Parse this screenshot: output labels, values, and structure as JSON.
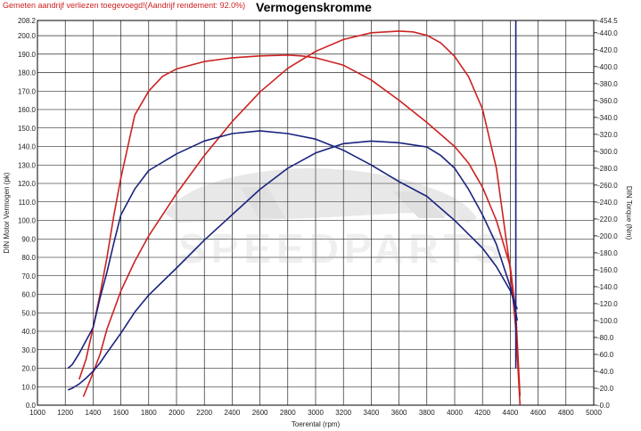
{
  "header": {
    "note": "Gemeten aandrijf verliezen toegevoegd!(Aandrijf rendement: 92.0%)",
    "title": "Vermogenskromme"
  },
  "chart_data": {
    "type": "line",
    "title": "Vermogenskromme",
    "xlabel": "Toerental (rpm)",
    "ylabel": "DIN Motor Vermogen (pk)",
    "y2label": "DIN Torque (Nm)",
    "xlim": [
      1000,
      5000
    ],
    "ylim": [
      0,
      208.2
    ],
    "y2lim": [
      0,
      454.5
    ],
    "xticks": [
      "1000",
      "1200",
      "1400",
      "1600",
      "1800",
      "2000",
      "2200",
      "2400",
      "2600",
      "2800",
      "3000",
      "3200",
      "3400",
      "3600",
      "3800",
      "4000",
      "4200",
      "4400",
      "4600",
      "4800",
      "5000"
    ],
    "yticks": [
      "0.0",
      "10.0",
      "20.0",
      "30.0",
      "40.0",
      "50.0",
      "60.0",
      "70.0",
      "80.0",
      "90.0",
      "100.0",
      "110.0",
      "120.0",
      "130.0",
      "140.0",
      "150.0",
      "160.0",
      "170.0",
      "180.0",
      "190.0",
      "200.0",
      "208.2"
    ],
    "y2ticks": [
      "-0.0",
      "-20.0",
      "-40.0",
      "-60.0",
      "-80.0",
      "-100.0",
      "-120.0",
      "-140.0",
      "-160.0",
      "-180.0",
      "-200.0",
      "-220.0",
      "-240.0",
      "-260.0",
      "-280.0",
      "-300.0",
      "-320.0",
      "-340.0",
      "-360.0",
      "-380.0",
      "-400.0",
      "-420.0",
      "-440.0",
      "-454.5"
    ],
    "grid": true,
    "colors": {
      "red": "#cc2222",
      "blue": "#1a237e",
      "frame": "#000000",
      "grid": "#000000"
    },
    "series": [
      {
        "color": "#cc2222",
        "axis": "left",
        "x": [
          1300,
          1350,
          1400,
          1450,
          1500,
          1550,
          1600,
          1650,
          1700,
          1800,
          1900,
          2000,
          2200,
          2400,
          2600,
          2800,
          2900,
          3000,
          3200,
          3400,
          3600,
          3800,
          4000,
          4100,
          4200,
          4300,
          4400,
          4440,
          4470
        ],
        "y": [
          14,
          25,
          42,
          60,
          80,
          103,
          123,
          140,
          157,
          170,
          178,
          182,
          186,
          188,
          189,
          189.5,
          189,
          188,
          184,
          176,
          165,
          153,
          140,
          131,
          118,
          100,
          75,
          50,
          5
        ]
      },
      {
        "color": "#cc2222",
        "axis": "right",
        "x": [
          1330,
          1380,
          1450,
          1500,
          1600,
          1700,
          1800,
          2000,
          2200,
          2400,
          2600,
          2800,
          3000,
          3200,
          3400,
          3600,
          3700,
          3800,
          3900,
          4000,
          4100,
          4200,
          4300,
          4350,
          4400,
          4440,
          4470
        ],
        "y": [
          10,
          30,
          60,
          90,
          135,
          170,
          200,
          250,
          295,
          335,
          370,
          398,
          418,
          432,
          440,
          442,
          441,
          437,
          428,
          412,
          388,
          350,
          280,
          220,
          160,
          90,
          0
        ]
      },
      {
        "color": "#1a237e",
        "axis": "left",
        "x": [
          1220,
          1250,
          1300,
          1350,
          1400,
          1450,
          1500,
          1550,
          1600,
          1700,
          1800,
          2000,
          2200,
          2400,
          2600,
          2800,
          3000,
          3200,
          3400,
          3600,
          3800,
          4000,
          4200,
          4300,
          4400,
          4450
        ],
        "y": [
          20,
          22,
          28,
          35,
          42,
          58,
          72,
          88,
          103,
          117,
          127,
          136,
          143,
          147,
          148.5,
          147,
          144,
          138,
          130,
          121,
          113,
          100,
          85,
          75,
          62,
          52
        ]
      },
      {
        "color": "#1a237e",
        "axis": "right",
        "x": [
          1220,
          1250,
          1300,
          1350,
          1400,
          1450,
          1500,
          1600,
          1700,
          1800,
          2000,
          2200,
          2400,
          2600,
          2800,
          3000,
          3200,
          3400,
          3600,
          3800,
          3900,
          4000,
          4100,
          4200,
          4300,
          4350,
          4400,
          4440,
          4450
        ],
        "y": [
          18,
          20,
          25,
          32,
          40,
          50,
          62,
          85,
          110,
          130,
          162,
          195,
          225,
          255,
          280,
          298,
          309,
          312,
          310,
          305,
          295,
          280,
          255,
          225,
          190,
          165,
          140,
          110,
          100
        ]
      },
      {
        "color": "#1a237e",
        "axis": "left",
        "x": [
          4440,
          4440
        ],
        "y": [
          20,
          208.2
        ]
      }
    ]
  }
}
